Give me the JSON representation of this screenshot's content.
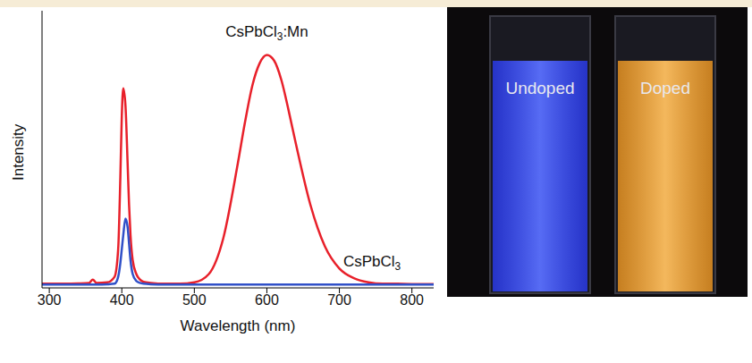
{
  "chart_data": {
    "type": "line",
    "x_label": "Wavelength (nm)",
    "y_label": "Intensity",
    "xlim": [
      290,
      830
    ],
    "xticks": [
      300,
      400,
      500,
      600,
      700,
      800
    ],
    "ylim": [
      0,
      100
    ],
    "tick_labels": "x",
    "grid": false,
    "x": [
      290,
      300,
      320,
      340,
      355,
      360,
      365,
      380,
      390,
      395,
      398,
      400,
      402,
      405,
      408,
      410,
      412,
      415,
      420,
      425,
      430,
      440,
      460,
      480,
      500,
      520,
      540,
      560,
      570,
      580,
      590,
      600,
      610,
      620,
      630,
      640,
      660,
      680,
      700,
      720,
      740,
      760,
      780,
      800,
      830
    ],
    "series": [
      {
        "name": "CsPbCl3:Mn",
        "color": "#e8202a",
        "values": [
          1.5,
          1.5,
          1.5,
          1.6,
          1.8,
          3,
          1.8,
          2,
          4,
          14,
          40,
          62,
          72,
          66,
          45,
          30,
          19,
          10,
          5,
          3,
          2.2,
          1.8,
          1.5,
          1.5,
          2,
          5,
          18,
          45,
          60,
          73,
          81,
          84,
          82,
          75,
          64,
          52,
          30,
          15,
          7,
          3.5,
          2,
          1.5,
          1.5,
          1.4,
          1.4
        ]
      },
      {
        "name": "CsPbCl3",
        "color": "#3050c8",
        "values": [
          1.2,
          1.2,
          1.2,
          1.2,
          1.2,
          1.2,
          1.2,
          1.3,
          1.5,
          4,
          9,
          14,
          19,
          25,
          22,
          16,
          10,
          5,
          2.5,
          1.8,
          1.5,
          1.3,
          1.2,
          1.2,
          1.2,
          1.2,
          1.2,
          1.2,
          1.2,
          1.2,
          1.2,
          1.2,
          1.2,
          1.2,
          1.2,
          1.2,
          1.2,
          1.2,
          1.2,
          1.2,
          1.2,
          1.2,
          1.2,
          1.2,
          1.2
        ]
      }
    ],
    "annotations": [
      {
        "text": "CsPbCl3:Mn",
        "x": 600,
        "y": 92
      },
      {
        "text": "CsPbCl3",
        "x": 745,
        "y": 9
      }
    ]
  },
  "photo": {
    "labels": [
      "Undoped",
      "Doped"
    ]
  }
}
